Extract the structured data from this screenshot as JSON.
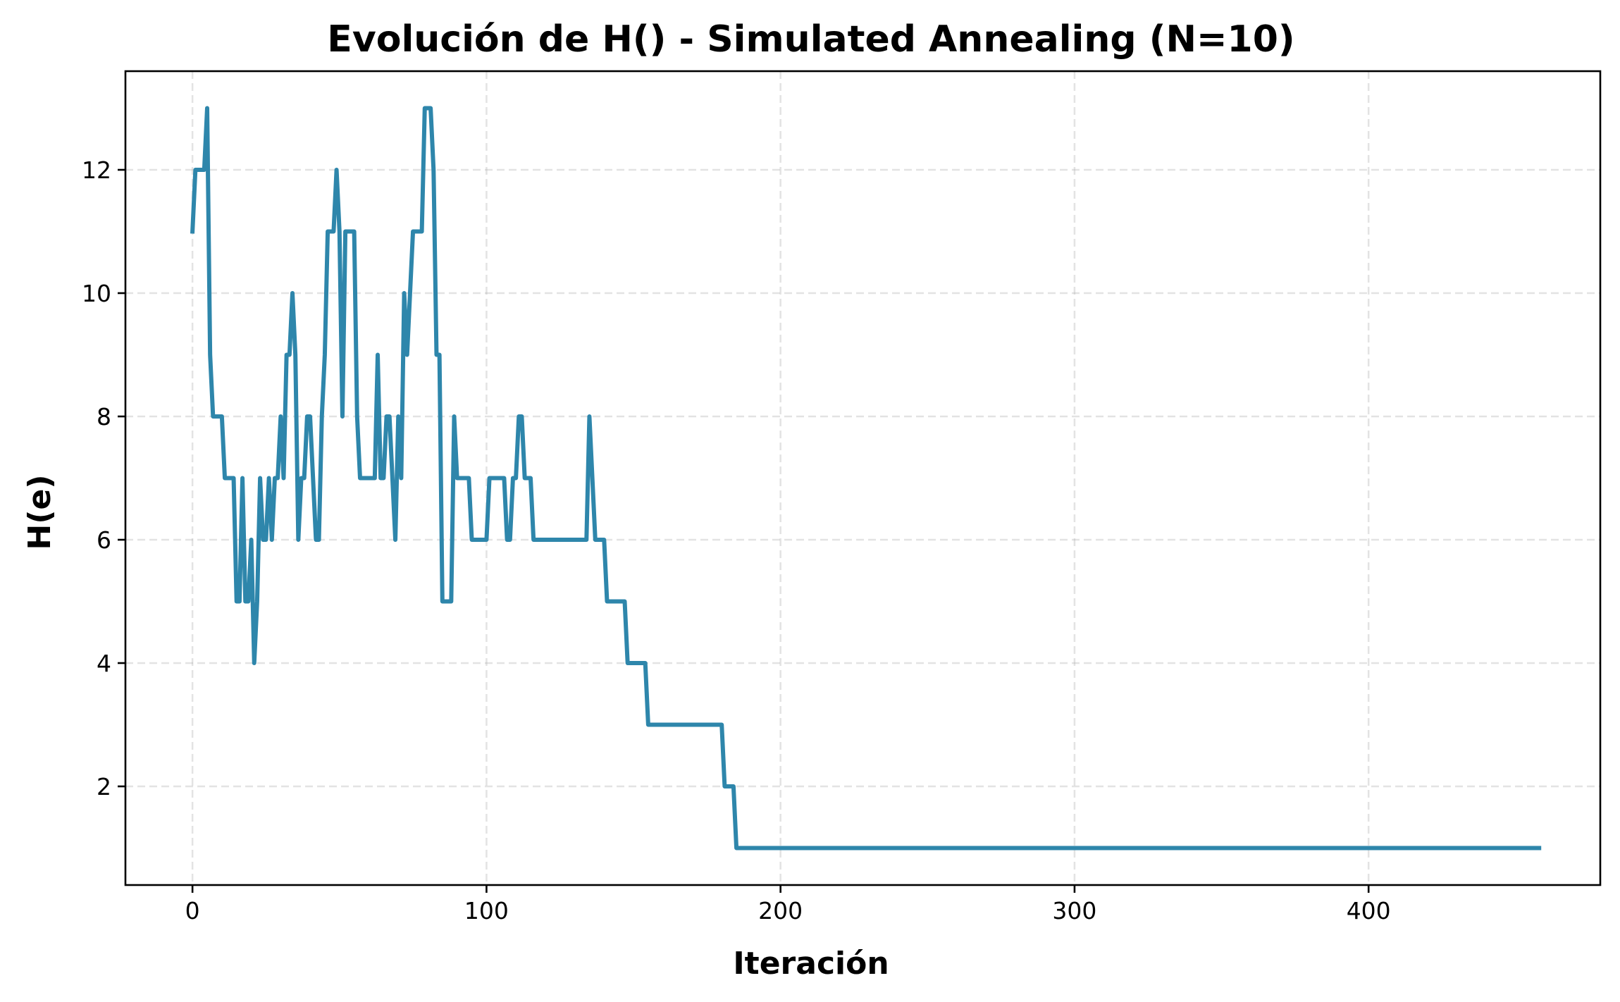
{
  "chart_data": {
    "type": "line",
    "title": "Evolución de H() - Simulated Annealing (N=10)",
    "xlabel": "Iteración",
    "ylabel": "H(e)",
    "xlim": [
      -22.8,
      478.8
    ],
    "ylim": [
      0.4,
      13.6
    ],
    "xticks": [
      0,
      100,
      200,
      300,
      400
    ],
    "yticks": [
      2,
      4,
      6,
      8,
      10,
      12
    ],
    "grid": true,
    "legend": "none",
    "color": "#2e86ab",
    "series": [
      {
        "x": [
          0,
          1,
          4,
          5,
          6,
          7,
          10,
          11,
          14,
          15,
          16,
          17,
          18,
          19,
          20,
          21,
          22,
          23,
          24,
          25,
          26,
          27,
          28,
          29,
          30,
          31,
          32,
          33,
          34,
          35,
          36,
          37,
          38,
          39,
          40,
          42,
          43,
          44,
          45,
          46,
          47,
          48,
          49,
          50,
          51,
          52,
          53,
          54,
          55,
          56,
          57,
          58,
          59,
          62,
          63,
          64,
          65,
          66,
          67,
          68,
          69,
          70,
          71,
          72,
          73,
          74,
          75,
          76,
          78,
          79,
          80,
          81,
          82,
          83,
          84,
          85,
          86,
          88,
          89,
          90,
          91,
          92,
          94,
          95,
          96,
          99,
          100,
          101,
          102,
          103,
          106,
          107,
          108,
          109,
          110,
          111,
          112,
          113,
          114,
          115,
          116,
          117,
          134,
          135,
          136,
          137,
          139,
          140,
          141,
          147,
          148,
          154,
          155,
          180,
          181,
          184,
          185,
          458
        ],
        "y": [
          11,
          12,
          12,
          13,
          9,
          8,
          8,
          7,
          7,
          5,
          5,
          7,
          5,
          5,
          6,
          4,
          5,
          7,
          6,
          6,
          7,
          6,
          7,
          7,
          8,
          7,
          9,
          9,
          10,
          9,
          6,
          7,
          7,
          8,
          8,
          6,
          6,
          8,
          9,
          11,
          11,
          11,
          12,
          11,
          8,
          11,
          11,
          11,
          11,
          8,
          7,
          7,
          7,
          7,
          9,
          7,
          7,
          8,
          8,
          7,
          6,
          8,
          7,
          10,
          9,
          10,
          11,
          11,
          11,
          13,
          13,
          13,
          12,
          9,
          9,
          5,
          5,
          5,
          8,
          7,
          7,
          7,
          7,
          6,
          6,
          6,
          6,
          7,
          7,
          7,
          7,
          6,
          6,
          7,
          7,
          8,
          8,
          7,
          7,
          7,
          6,
          6,
          6,
          8,
          7,
          6,
          6,
          6,
          5,
          5,
          4,
          4,
          3,
          3,
          2,
          2,
          1,
          1
        ]
      }
    ]
  }
}
